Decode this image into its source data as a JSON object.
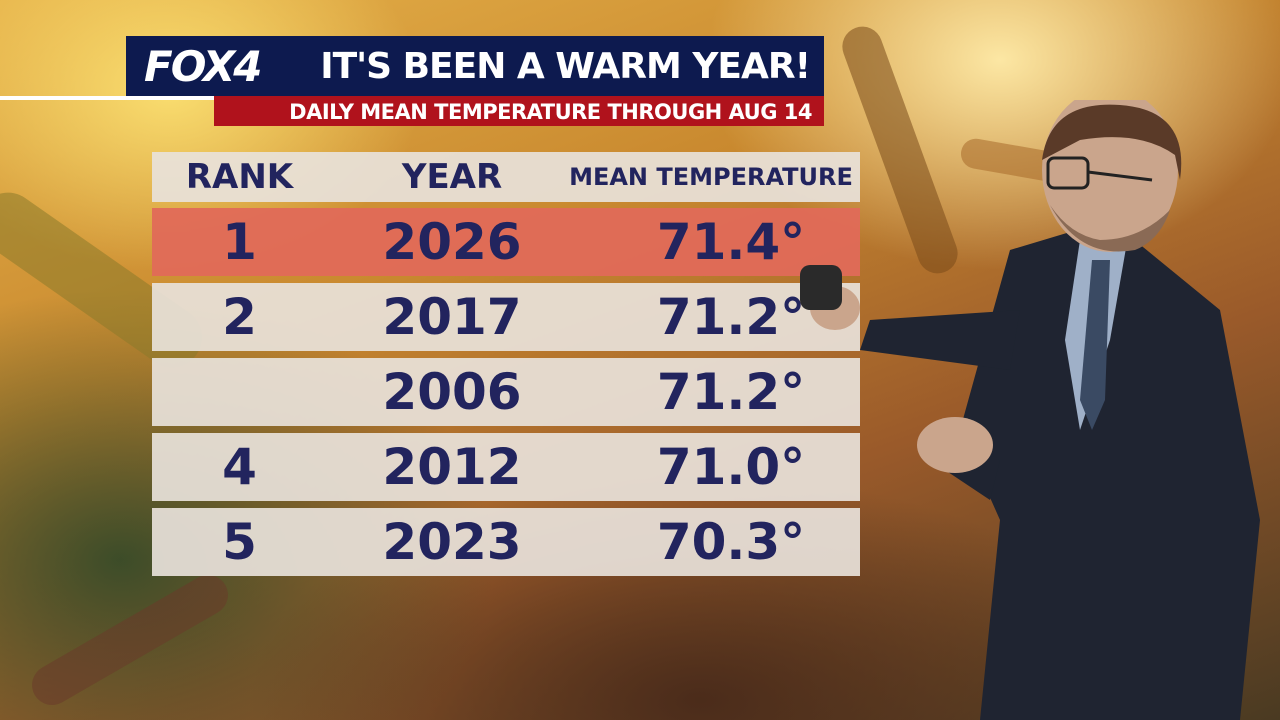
{
  "header": {
    "brand": "FOX4",
    "headline": "IT'S BEEN A WARM YEAR!",
    "subheadline": "DAILY MEAN TEMPERATURE THROUGH AUG 14"
  },
  "table": {
    "columns": [
      "RANK",
      "YEAR",
      "MEAN TEMPERATURE"
    ],
    "rows": [
      {
        "rank": "1",
        "year": "2026",
        "temp": "71.4°"
      },
      {
        "rank": "2",
        "year": "2017",
        "temp": "71.2°"
      },
      {
        "rank": "",
        "year": "2006",
        "temp": "71.2°"
      },
      {
        "rank": "4",
        "year": "2012",
        "temp": "71.0°"
      },
      {
        "rank": "5",
        "year": "2023",
        "temp": "70.3°"
      }
    ]
  },
  "colors": {
    "brand_navy": "#0d1a4f",
    "brand_red": "#b0121c",
    "highlight_row": "#e06a58",
    "table_text": "#22245e"
  }
}
